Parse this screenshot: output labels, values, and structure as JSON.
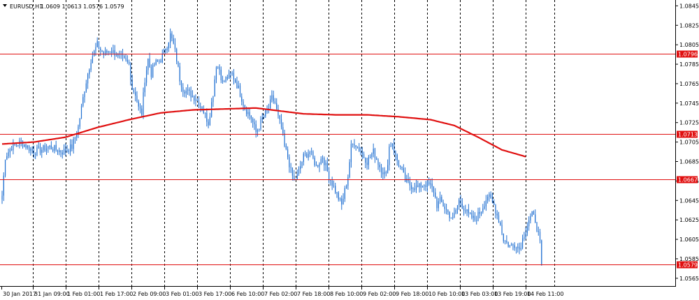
{
  "header": {
    "symbol_label": "EURUSD,H1",
    "ohlc_text": "1.0609 1.0613 1.0576 1.0579",
    "dropdown_icon": "triangle-down-icon"
  },
  "colors": {
    "background": "#ffffff",
    "grid": "#000000",
    "candle": "#1f6fd1",
    "moving_average": "#e01010",
    "level_line": "#e01010",
    "level_label_bg": "#e01010",
    "level_label_text": "#ffffff"
  },
  "chart_data": {
    "type": "candlestick",
    "title": "",
    "symbol": "EURUSD",
    "timeframe": "H1",
    "ylim": [
      1.0557,
      1.0851
    ],
    "y_ticks": [
      "1.0845",
      "1.0825",
      "1.0805",
      "1.0785",
      "1.0765",
      "1.0745",
      "1.0725",
      "1.0705",
      "1.0685",
      "1.0665",
      "1.0645",
      "1.0625",
      "1.0605",
      "1.0585",
      "1.0565"
    ],
    "x_ticks": [
      "30 Jan 2017",
      "31 Jan 09:00",
      "1 Feb 01:00",
      "1 Feb 17:00",
      "2 Feb 09:00",
      "3 Feb 01:00",
      "3 Feb 17:00",
      "6 Feb 10:00",
      "7 Feb 02:00",
      "7 Feb 18:00",
      "8 Feb 10:00",
      "9 Feb 02:00",
      "9 Feb 18:00",
      "10 Feb 10:00",
      "13 Feb 03:00",
      "13 Feb 19:00",
      "14 Feb 11:00"
    ],
    "grid": true,
    "levels": [
      {
        "value": 1.0796,
        "label": "1.0796"
      },
      {
        "value": 1.0713,
        "label": "1.0713"
      },
      {
        "value": 1.0667,
        "label": "1.0667"
      },
      {
        "value": 1.0579,
        "label": "1.0579"
      }
    ],
    "close_path": [
      [
        0,
        1.065
      ],
      [
        2,
        1.069
      ],
      [
        6,
        1.07
      ],
      [
        12,
        1.0705
      ],
      [
        20,
        1.0695
      ],
      [
        30,
        1.07
      ],
      [
        38,
        1.0695
      ],
      [
        44,
        1.07
      ],
      [
        48,
        1.072
      ],
      [
        52,
        1.076
      ],
      [
        56,
        1.079
      ],
      [
        60,
        1.0805
      ],
      [
        64,
        1.0795
      ],
      [
        68,
        1.08
      ],
      [
        72,
        1.0795
      ],
      [
        76,
        1.079
      ],
      [
        80,
        1.0785
      ],
      [
        82,
        1.076
      ],
      [
        84,
        1.0755
      ],
      [
        86,
        1.074
      ],
      [
        88,
        1.0735
      ],
      [
        90,
        1.077
      ],
      [
        92,
        1.079
      ],
      [
        94,
        1.0775
      ],
      [
        96,
        1.0785
      ],
      [
        100,
        1.079
      ],
      [
        104,
        1.0805
      ],
      [
        106,
        1.0815
      ],
      [
        108,
        1.0805
      ],
      [
        110,
        1.079
      ],
      [
        112,
        1.077
      ],
      [
        114,
        1.076
      ],
      [
        118,
        1.0755
      ],
      [
        122,
        1.075
      ],
      [
        126,
        1.074
      ],
      [
        130,
        1.0725
      ],
      [
        133,
        1.0755
      ],
      [
        135,
        1.0785
      ],
      [
        137,
        1.078
      ],
      [
        139,
        1.0765
      ],
      [
        141,
        1.077
      ],
      [
        145,
        1.0775
      ],
      [
        149,
        1.076
      ],
      [
        153,
        1.074
      ],
      [
        157,
        1.073
      ],
      [
        160,
        1.0715
      ],
      [
        163,
        1.0725
      ],
      [
        166,
        1.0735
      ],
      [
        168,
        1.074
      ],
      [
        170,
        1.075
      ],
      [
        172,
        1.0745
      ],
      [
        174,
        1.073
      ],
      [
        176,
        1.072
      ],
      [
        178,
        1.07
      ],
      [
        180,
        1.069
      ],
      [
        182,
        1.0675
      ],
      [
        184,
        1.0665
      ],
      [
        186,
        1.067
      ],
      [
        188,
        1.068
      ],
      [
        190,
        1.069
      ],
      [
        194,
        1.0695
      ],
      [
        198,
        1.068
      ],
      [
        202,
        1.069
      ],
      [
        206,
        1.067
      ],
      [
        210,
        1.0655
      ],
      [
        214,
        1.064
      ],
      [
        218,
        1.067
      ],
      [
        220,
        1.07
      ],
      [
        222,
        1.0705
      ],
      [
        226,
        1.0695
      ],
      [
        230,
        1.0685
      ],
      [
        234,
        1.0695
      ],
      [
        238,
        1.068
      ],
      [
        242,
        1.067
      ],
      [
        244,
        1.07
      ],
      [
        246,
        1.0705
      ],
      [
        248,
        1.069
      ],
      [
        252,
        1.0675
      ],
      [
        254,
        1.0665
      ],
      [
        258,
        1.066
      ],
      [
        262,
        1.0658
      ],
      [
        266,
        1.0662
      ],
      [
        270,
        1.066
      ],
      [
        272,
        1.0655
      ],
      [
        274,
        1.064
      ],
      [
        276,
        1.0645
      ],
      [
        280,
        1.0635
      ],
      [
        284,
        1.0625
      ],
      [
        286,
        1.0635
      ],
      [
        288,
        1.0645
      ],
      [
        290,
        1.064
      ],
      [
        294,
        1.063
      ],
      [
        298,
        1.0625
      ],
      [
        302,
        1.0635
      ],
      [
        306,
        1.065
      ],
      [
        310,
        1.064
      ],
      [
        314,
        1.062
      ],
      [
        316,
        1.0605
      ],
      [
        320,
        1.0598
      ],
      [
        324,
        1.06
      ],
      [
        326,
        1.0595
      ],
      [
        328,
        1.0605
      ],
      [
        330,
        1.0615
      ],
      [
        332,
        1.0625
      ],
      [
        334,
        1.063
      ],
      [
        336,
        1.0625
      ],
      [
        338,
        1.061
      ],
      [
        339,
        1.06
      ],
      [
        340,
        1.0579
      ]
    ],
    "moving_average_path": [
      [
        0,
        1.0703
      ],
      [
        20,
        1.0705
      ],
      [
        40,
        1.071
      ],
      [
        60,
        1.072
      ],
      [
        80,
        1.0728
      ],
      [
        100,
        1.0735
      ],
      [
        120,
        1.0738
      ],
      [
        140,
        1.0739
      ],
      [
        160,
        1.074
      ],
      [
        170,
        1.0738
      ],
      [
        190,
        1.0734
      ],
      [
        210,
        1.0733
      ],
      [
        230,
        1.0733
      ],
      [
        250,
        1.0731
      ],
      [
        270,
        1.0728
      ],
      [
        285,
        1.0722
      ],
      [
        300,
        1.071
      ],
      [
        315,
        1.0697
      ],
      [
        330,
        1.069
      ]
    ]
  }
}
